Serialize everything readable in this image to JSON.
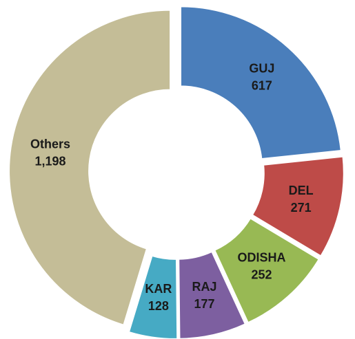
{
  "chart_data": {
    "type": "donut",
    "categories": [
      "GUJ",
      "DEL",
      "ODISHA",
      "RAJ",
      "KAR",
      "Others"
    ],
    "values": [
      617,
      271,
      252,
      177,
      128,
      1198
    ],
    "value_labels": [
      "617",
      "271",
      "252",
      "177",
      "128",
      "1,198"
    ],
    "colors": [
      "#4a7ebb",
      "#be4b48",
      "#98b954",
      "#7d5fa0",
      "#46aac4",
      "#c4bd97"
    ]
  }
}
